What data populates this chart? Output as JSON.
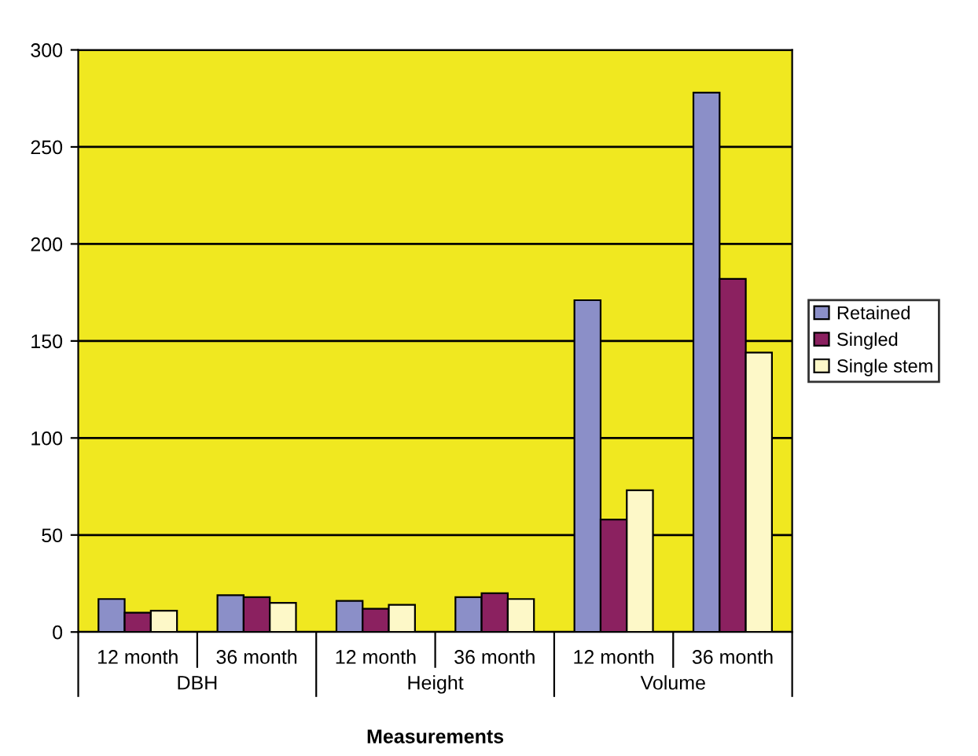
{
  "chart_data": {
    "type": "bar",
    "xlabel": "Measurements",
    "categories": [
      "12 month",
      "36 month",
      "12 month",
      "36 month",
      "12 month",
      "36 month"
    ],
    "annotations": [
      "DBH",
      "Height",
      "Volume"
    ],
    "series": [
      {
        "name": "Retained",
        "color": "#8b8fc8",
        "values": [
          17,
          19,
          16,
          18,
          171,
          278
        ]
      },
      {
        "name": "Singled",
        "color": "#8b2160",
        "values": [
          10,
          18,
          12,
          20,
          58,
          182
        ]
      },
      {
        "name": "Single stem",
        "color": "#fdf8c8",
        "values": [
          11,
          15,
          14,
          17,
          73,
          144
        ]
      }
    ],
    "ylim": [
      0,
      300
    ],
    "yticks": [
      0,
      50,
      100,
      150,
      200,
      250,
      300
    ],
    "grid": "y",
    "legend": "right"
  }
}
